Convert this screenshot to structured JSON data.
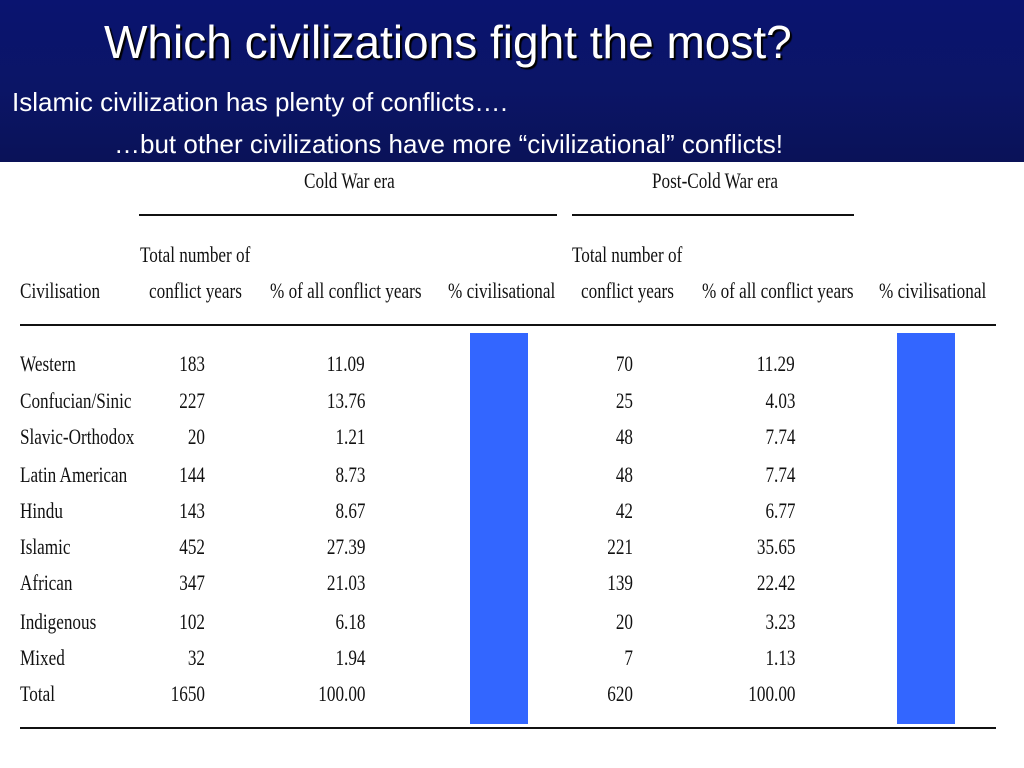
{
  "slide": {
    "title": "Which civilizations fight the most?",
    "subtitle_line1": "Islamic civilization has plenty of conflicts….",
    "subtitle_line2": "…but other civilizations have more “civilizational” conflicts!"
  },
  "table": {
    "group_headers": {
      "cold_war": "Cold War era",
      "post_cold_war": "Post-Cold War era"
    },
    "column_headers": {
      "civilisation": "Civilisation",
      "total_line1": "Total number of",
      "total_line2": "conflict years",
      "pct_all": "% of all conflict years",
      "pct_civ": "% civilisational"
    },
    "rows": [
      {
        "civilisation": "Western",
        "cw_total": "183",
        "cw_pct": "11.09",
        "pcw_total": "70",
        "pcw_pct": "11.29"
      },
      {
        "civilisation": "Confucian/Sinic",
        "cw_total": "227",
        "cw_pct": "13.76",
        "pcw_total": "25",
        "pcw_pct": "4.03"
      },
      {
        "civilisation": "Slavic-Orthodox",
        "cw_total": "20",
        "cw_pct": "1.21",
        "pcw_total": "48",
        "pcw_pct": "7.74"
      },
      {
        "civilisation": "Latin American",
        "cw_total": "144",
        "cw_pct": "8.73",
        "pcw_total": "48",
        "pcw_pct": "7.74"
      },
      {
        "civilisation": "Hindu",
        "cw_total": "143",
        "cw_pct": "8.67",
        "pcw_total": "42",
        "pcw_pct": "6.77"
      },
      {
        "civilisation": "Islamic",
        "cw_total": "452",
        "cw_pct": "27.39",
        "pcw_total": "221",
        "pcw_pct": "35.65"
      },
      {
        "civilisation": "African",
        "cw_total": "347",
        "cw_pct": "21.03",
        "pcw_total": "139",
        "pcw_pct": "22.42"
      },
      {
        "civilisation": "Indigenous",
        "cw_total": "102",
        "cw_pct": "6.18",
        "pcw_total": "20",
        "pcw_pct": "3.23"
      },
      {
        "civilisation": "Mixed",
        "cw_total": "32",
        "cw_pct": "1.94",
        "pcw_total": "7",
        "pcw_pct": "1.13"
      },
      {
        "civilisation": "Total",
        "cw_total": "1650",
        "cw_pct": "100.00",
        "pcw_total": "620",
        "pcw_pct": "100.00"
      }
    ]
  },
  "colors": {
    "header_background": "#0a1470",
    "mask_blue": "#3366ff"
  }
}
